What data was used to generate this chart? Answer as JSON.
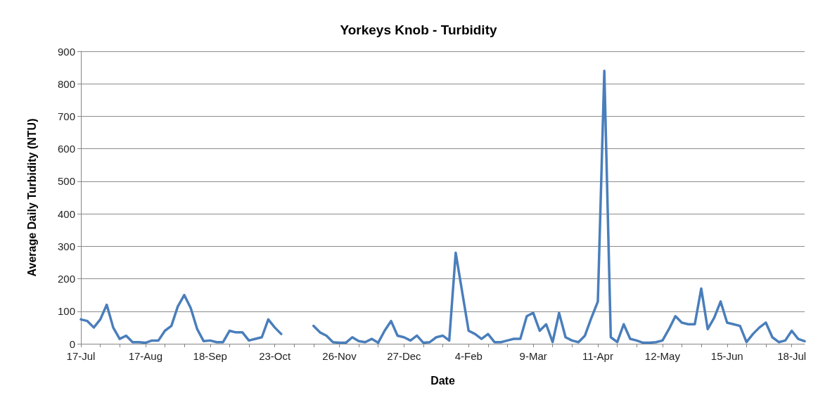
{
  "chart_data": {
    "type": "line",
    "title": "Yorkeys Knob - Turbidity",
    "xlabel": "Date",
    "ylabel": "Average Daily Turbidity (NTU)",
    "categories": [
      "17-Jul",
      null,
      null,
      null,
      null,
      null,
      null,
      null,
      null,
      null,
      "17-Aug",
      null,
      null,
      null,
      null,
      null,
      null,
      null,
      null,
      null,
      "18-Sep",
      null,
      null,
      null,
      null,
      null,
      null,
      null,
      null,
      null,
      "23-Oct",
      null,
      null,
      null,
      null,
      null,
      null,
      null,
      null,
      null,
      "26-Nov",
      null,
      null,
      null,
      null,
      null,
      null,
      null,
      null,
      null,
      "27-Dec",
      null,
      null,
      null,
      null,
      null,
      null,
      null,
      null,
      null,
      "4-Feb",
      null,
      null,
      null,
      null,
      null,
      null,
      null,
      null,
      null,
      "9-Mar",
      null,
      null,
      null,
      null,
      null,
      null,
      null,
      null,
      null,
      "11-Apr",
      null,
      null,
      null,
      null,
      null,
      null,
      null,
      null,
      null,
      "12-May",
      null,
      null,
      null,
      null,
      null,
      null,
      null,
      null,
      null,
      "15-Jun",
      null,
      null,
      null,
      null,
      null,
      null,
      null,
      null,
      null,
      "18-Jul",
      null,
      null
    ],
    "series": [
      {
        "color": "#4a7ebb",
        "values": [
          75,
          70,
          50,
          75,
          120,
          50,
          15,
          25,
          5,
          5,
          3,
          10,
          10,
          40,
          55,
          115,
          150,
          110,
          45,
          8,
          10,
          5,
          5,
          40,
          35,
          35,
          10,
          15,
          20,
          75,
          50,
          30,
          null,
          null,
          null,
          null,
          55,
          35,
          25,
          5,
          3,
          3,
          20,
          8,
          5,
          15,
          3,
          40,
          70,
          25,
          20,
          10,
          25,
          3,
          5,
          20,
          25,
          10,
          280,
          160,
          40,
          30,
          15,
          30,
          5,
          5,
          10,
          15,
          15,
          85,
          95,
          40,
          60,
          5,
          95,
          20,
          10,
          5,
          25,
          80,
          130,
          840,
          20,
          5,
          60,
          15,
          10,
          3,
          3,
          5,
          10,
          45,
          85,
          65,
          60,
          60,
          170,
          45,
          80,
          130,
          65,
          60,
          55,
          5,
          30,
          50,
          65,
          20,
          5,
          10,
          40,
          15,
          8
        ]
      }
    ],
    "ylim": [
      0,
      900
    ],
    "yticks": [
      0,
      100,
      200,
      300,
      400,
      500,
      600,
      700,
      800,
      900
    ],
    "grid": "y",
    "marker": "none",
    "line_style": "solid"
  }
}
